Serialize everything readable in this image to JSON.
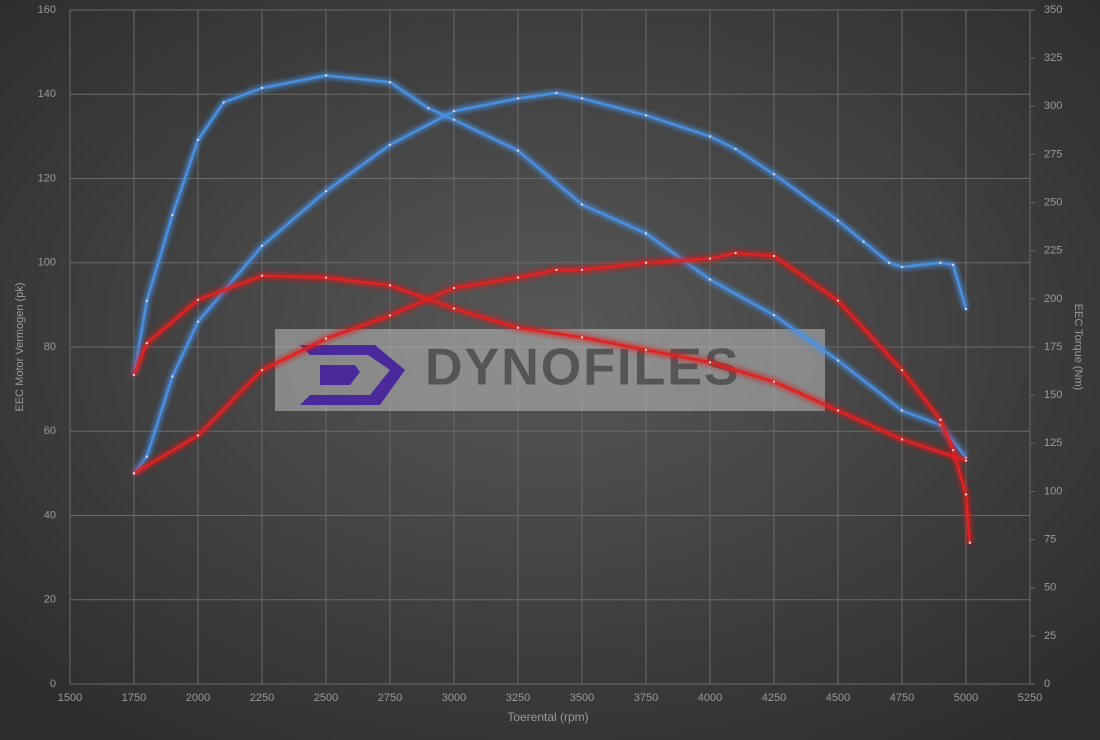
{
  "chart_data": {
    "type": "line",
    "xlabel": "Toerental (rpm)",
    "ylabel": "EEC Motor Vermogen (pk)",
    "y2label": "EEC Torque (Nm)",
    "watermark": "DYNOFILES",
    "xlim": [
      1500,
      5250
    ],
    "xticks": [
      1500,
      1750,
      2000,
      2250,
      2500,
      2750,
      3000,
      3250,
      3500,
      3750,
      4000,
      4250,
      4500,
      4750,
      5000,
      5250
    ],
    "ylim": [
      0,
      160
    ],
    "yticks": [
      0,
      20,
      40,
      60,
      80,
      100,
      120,
      140,
      160
    ],
    "y2lim": [
      0,
      350
    ],
    "y2ticks": [
      0,
      25,
      50,
      75,
      100,
      125,
      150,
      175,
      200,
      225,
      250,
      275,
      300,
      325,
      350
    ],
    "grid": true,
    "series": [
      {
        "color": "#4a8fe0",
        "axis": "y",
        "x": [
          1750,
          1800,
          1900,
          2000,
          2250,
          2500,
          2750,
          3000,
          3250,
          3400,
          3500,
          3750,
          4000,
          4100,
          4250,
          4500,
          4600,
          4700,
          4750,
          4900,
          4950,
          5000
        ],
        "values": [
          50,
          54,
          73,
          86,
          104,
          117,
          128,
          136,
          139,
          140.3,
          139,
          135,
          130,
          127,
          121,
          110,
          105,
          100,
          99,
          100,
          99.5,
          89
        ]
      },
      {
        "color": "#4a8fe0",
        "axis": "y2",
        "x": [
          1750,
          1800,
          1900,
          2000,
          2100,
          2250,
          2500,
          2750,
          2900,
          3000,
          3250,
          3500,
          3750,
          4000,
          4250,
          4500,
          4750,
          4900,
          5000
        ],
        "values": [
          160.5,
          199,
          243.5,
          282.5,
          302,
          309.5,
          316,
          312.5,
          299,
          293,
          277,
          249,
          234,
          210,
          191.5,
          168,
          142,
          134.5,
          117.5
        ]
      },
      {
        "color": "#e02424",
        "axis": "y",
        "x": [
          1750,
          2000,
          2250,
          2500,
          2750,
          3000,
          3250,
          3400,
          3500,
          3750,
          4000,
          4100,
          4250,
          4500,
          4750,
          4900,
          4950,
          5000,
          5015
        ],
        "values": [
          50,
          59,
          74.5,
          82,
          87.5,
          94,
          96.5,
          98.3,
          98.3,
          100,
          101,
          102.3,
          101.6,
          91,
          74.5,
          62.7,
          55.5,
          45,
          33.5
        ]
      },
      {
        "color": "#e02424",
        "axis": "y2",
        "x": [
          1750,
          1800,
          2000,
          2250,
          2500,
          2750,
          3000,
          3250,
          3500,
          3750,
          4000,
          4250,
          4500,
          4750,
          5000
        ],
        "values": [
          160.5,
          177,
          199.5,
          212,
          211,
          207,
          195,
          185,
          180,
          173.5,
          167,
          157,
          142,
          127,
          116
        ]
      }
    ]
  }
}
